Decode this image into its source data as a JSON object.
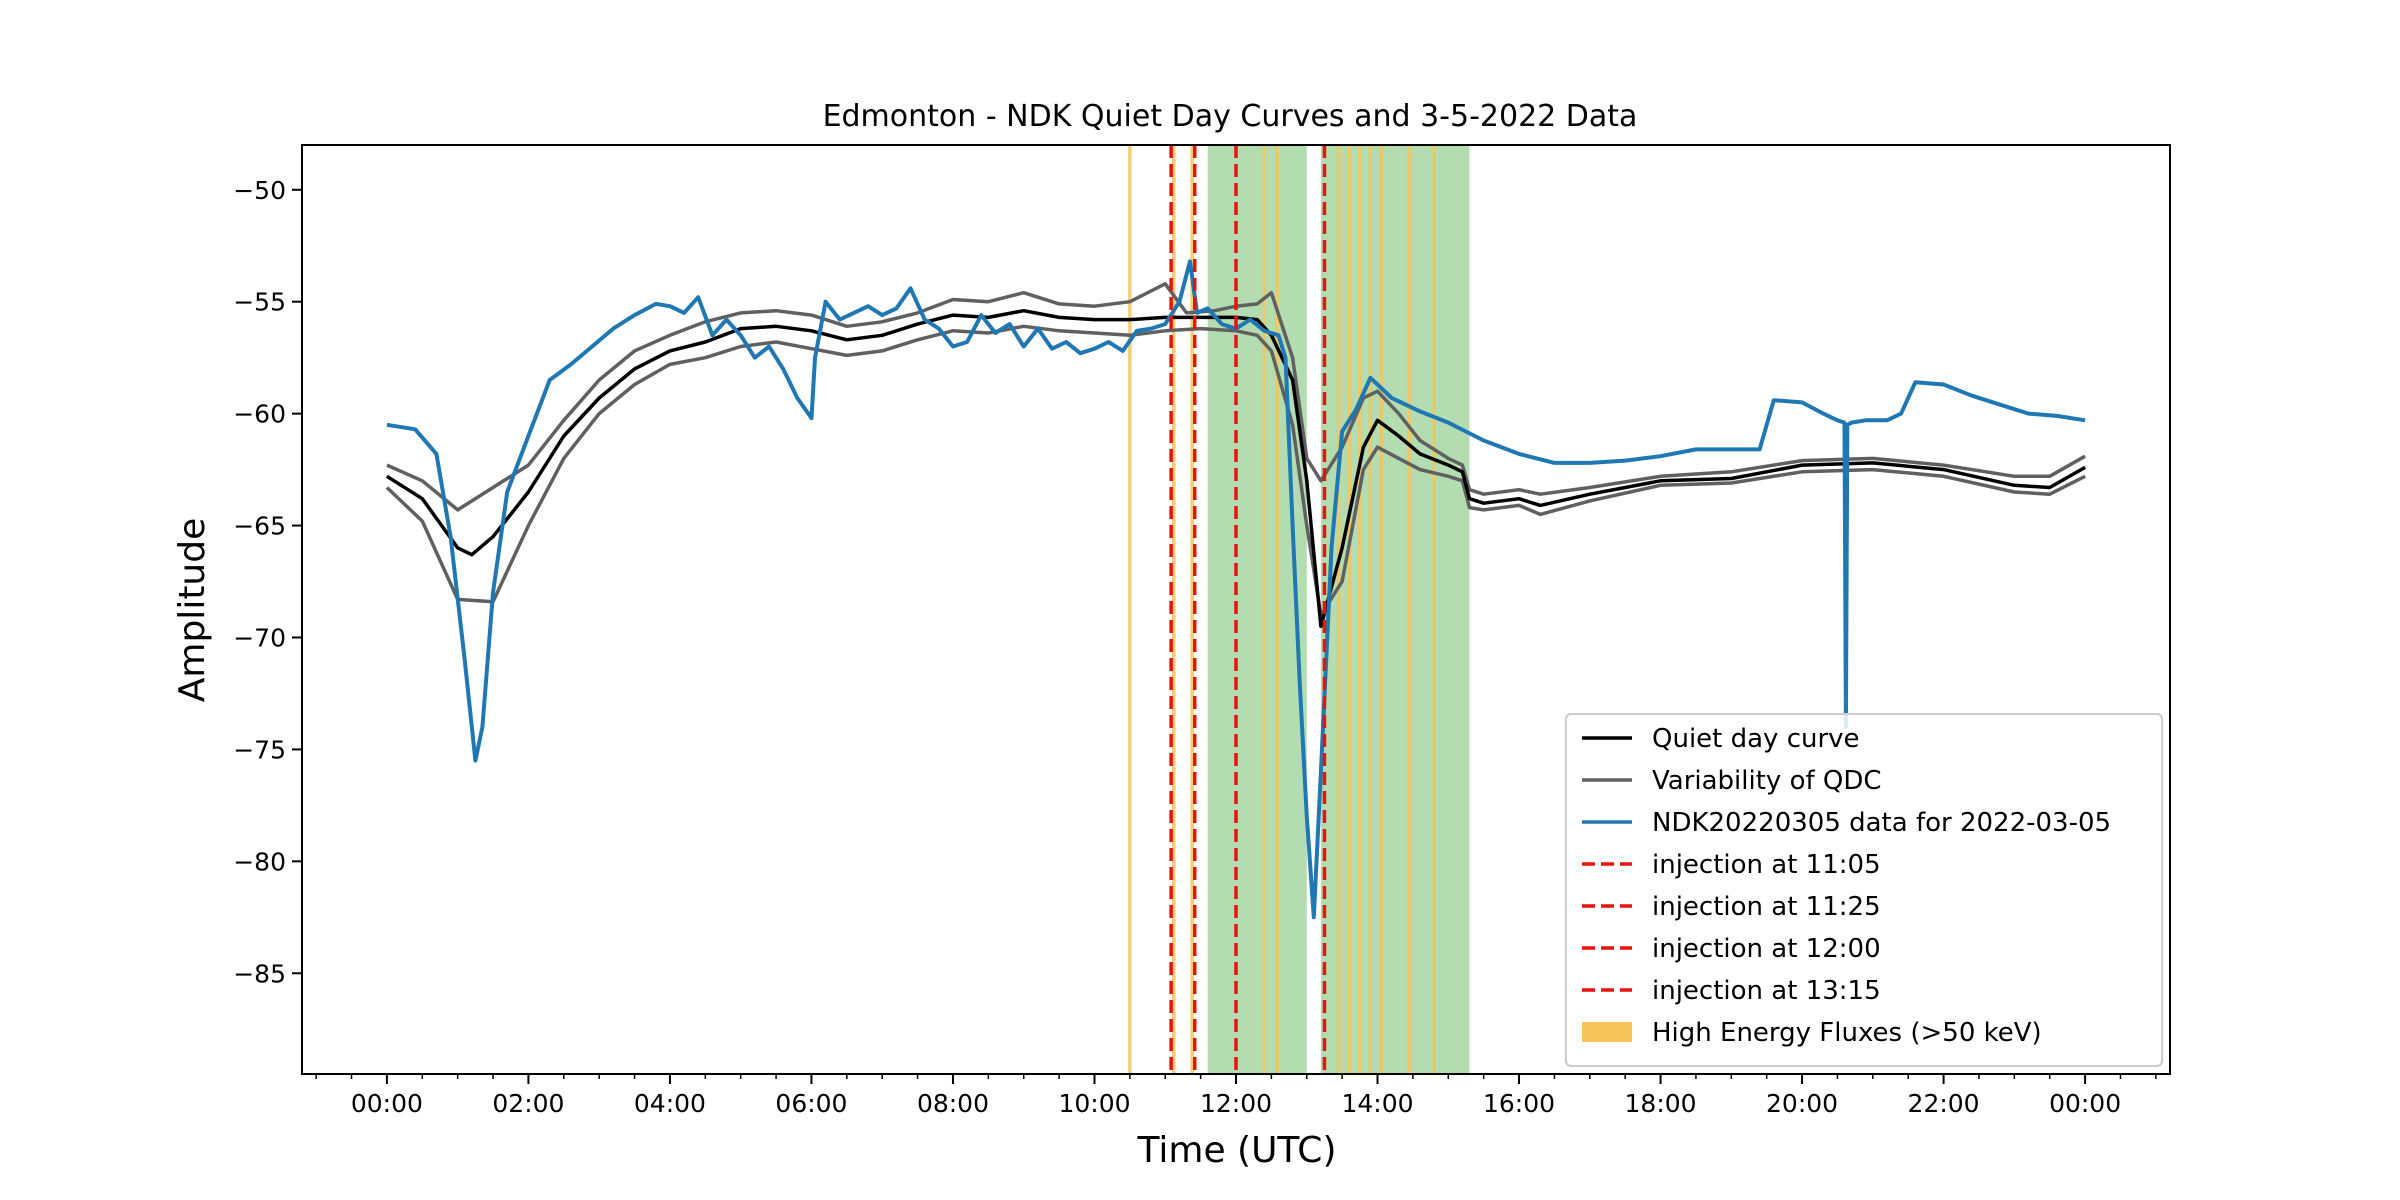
{
  "chart_data": {
    "type": "line",
    "title": "Edmonton - NDK Quiet Day Curves and 3-5-2022 Data",
    "xlabel": "Time (UTC)",
    "ylabel": "Amplitude",
    "x_unit": "hours UTC",
    "xlim": [
      -1.2,
      25.2
    ],
    "ylim": [
      -89.5,
      -48
    ],
    "x_ticks": [
      0,
      2,
      4,
      6,
      8,
      10,
      12,
      14,
      16,
      18,
      20,
      22,
      24
    ],
    "x_tick_labels": [
      "00:00",
      "02:00",
      "04:00",
      "06:00",
      "08:00",
      "10:00",
      "12:00",
      "14:00",
      "16:00",
      "18:00",
      "20:00",
      "22:00",
      "00:00"
    ],
    "y_ticks": [
      -50,
      -55,
      -60,
      -65,
      -70,
      -75,
      -80,
      -85
    ],
    "y_tick_labels": [
      "−50",
      "−55",
      "−60",
      "−65",
      "−70",
      "−75",
      "−80",
      "−85"
    ],
    "grid": false,
    "legend_position": "lower-right",
    "colors": {
      "quiet": "#000000",
      "variability": "#606060",
      "data": "#1f77b4",
      "injection": "#e8140c",
      "high_energy": "#f5c55c",
      "green_band": "#8fcc8a"
    },
    "series": [
      {
        "name": "Quiet day curve",
        "key": "quiet",
        "x": [
          0,
          0.5,
          1.0,
          1.2,
          1.5,
          2.0,
          2.5,
          3.0,
          3.5,
          4.0,
          4.5,
          5.0,
          5.5,
          6.0,
          6.5,
          7.0,
          7.5,
          8.0,
          8.5,
          9.0,
          9.5,
          10.0,
          10.5,
          11.0,
          11.5,
          12.0,
          12.3,
          12.5,
          12.8,
          13.0,
          13.2,
          13.5,
          13.8,
          14.0,
          14.3,
          14.6,
          15.0,
          15.2,
          15.3,
          15.5,
          16.0,
          16.3,
          17.0,
          18.0,
          19.0,
          20.0,
          21.0,
          22.0,
          23.0,
          23.5,
          24.0
        ],
        "y": [
          -62.8,
          -63.8,
          -66.0,
          -66.3,
          -65.5,
          -63.5,
          -61.0,
          -59.3,
          -58.0,
          -57.2,
          -56.8,
          -56.2,
          -56.1,
          -56.3,
          -56.7,
          -56.5,
          -56.0,
          -55.6,
          -55.7,
          -55.4,
          -55.7,
          -55.8,
          -55.8,
          -55.7,
          -55.7,
          -55.7,
          -55.8,
          -56.5,
          -58.5,
          -63.0,
          -69.5,
          -66.0,
          -61.5,
          -60.3,
          -61.0,
          -61.8,
          -62.3,
          -62.6,
          -63.8,
          -64.0,
          -63.8,
          -64.1,
          -63.6,
          -63.0,
          -62.9,
          -62.3,
          -62.2,
          -62.5,
          -63.2,
          -63.3,
          -62.4
        ]
      },
      {
        "name": "Variability of QDC",
        "key": "variability",
        "bands": [
          {
            "label": "upper",
            "x": [
              0,
              0.5,
              1.0,
              1.5,
              2.0,
              2.5,
              3.0,
              3.5,
              4.0,
              4.5,
              5.0,
              5.5,
              6.0,
              6.5,
              7.0,
              7.5,
              8.0,
              8.5,
              9.0,
              9.5,
              10.0,
              10.5,
              11.0,
              11.3,
              11.7,
              12.0,
              12.3,
              12.5,
              12.8,
              13.0,
              13.2,
              13.5,
              13.8,
              14.0,
              14.3,
              14.6,
              15.0,
              15.2,
              15.3,
              15.5,
              16.0,
              16.3,
              17.0,
              18.0,
              19.0,
              20.0,
              21.0,
              22.0,
              23.0,
              23.5,
              24.0
            ],
            "y": [
              -62.3,
              -63.0,
              -64.3,
              -63.3,
              -62.3,
              -60.3,
              -58.5,
              -57.2,
              -56.5,
              -55.9,
              -55.5,
              -55.4,
              -55.6,
              -56.1,
              -55.9,
              -55.5,
              -54.9,
              -55.0,
              -54.6,
              -55.1,
              -55.2,
              -55.0,
              -54.2,
              -55.5,
              -55.4,
              -55.2,
              -55.1,
              -54.6,
              -57.5,
              -62.0,
              -63.0,
              -61.5,
              -59.3,
              -59.0,
              -60.0,
              -61.2,
              -62.0,
              -62.3,
              -63.4,
              -63.6,
              -63.4,
              -63.6,
              -63.3,
              -62.8,
              -62.6,
              -62.1,
              -62.0,
              -62.3,
              -62.8,
              -62.8,
              -61.9
            ]
          },
          {
            "label": "lower",
            "x": [
              0,
              0.5,
              1.0,
              1.5,
              2.0,
              2.5,
              3.0,
              3.5,
              4.0,
              4.5,
              5.0,
              5.5,
              6.0,
              6.5,
              7.0,
              7.5,
              8.0,
              8.5,
              9.0,
              9.5,
              10.0,
              10.5,
              11.0,
              11.5,
              12.0,
              12.3,
              12.5,
              12.8,
              13.0,
              13.2,
              13.5,
              13.8,
              14.0,
              14.3,
              14.6,
              15.0,
              15.2,
              15.3,
              15.5,
              16.0,
              16.3,
              17.0,
              18.0,
              19.0,
              20.0,
              21.0,
              22.0,
              23.0,
              23.5,
              24.0
            ],
            "y": [
              -63.3,
              -64.8,
              -68.3,
              -68.4,
              -65.0,
              -62.0,
              -60.0,
              -58.7,
              -57.8,
              -57.5,
              -57.0,
              -56.8,
              -57.1,
              -57.4,
              -57.2,
              -56.7,
              -56.3,
              -56.4,
              -56.1,
              -56.3,
              -56.4,
              -56.5,
              -56.3,
              -56.2,
              -56.3,
              -56.5,
              -57.2,
              -60.5,
              -65.0,
              -69.0,
              -67.5,
              -62.5,
              -61.5,
              -62.0,
              -62.5,
              -62.8,
              -63.0,
              -64.2,
              -64.3,
              -64.1,
              -64.5,
              -63.9,
              -63.2,
              -63.1,
              -62.6,
              -62.5,
              -62.8,
              -63.5,
              -63.6,
              -62.8
            ]
          }
        ]
      },
      {
        "name": "NDK20220305 data for 2022-03-05",
        "key": "data",
        "x": [
          0,
          0.4,
          0.7,
          0.9,
          1.1,
          1.25,
          1.35,
          1.5,
          1.7,
          2.0,
          2.3,
          2.6,
          2.9,
          3.2,
          3.5,
          3.8,
          4.0,
          4.2,
          4.4,
          4.6,
          4.8,
          5.0,
          5.2,
          5.4,
          5.6,
          5.8,
          6.0,
          6.05,
          6.2,
          6.4,
          6.6,
          6.8,
          7.0,
          7.2,
          7.4,
          7.6,
          7.8,
          8.0,
          8.2,
          8.4,
          8.6,
          8.8,
          9.0,
          9.2,
          9.4,
          9.6,
          9.8,
          10.0,
          10.2,
          10.4,
          10.6,
          10.8,
          11.0,
          11.2,
          11.35,
          11.45,
          11.6,
          11.8,
          12.0,
          12.2,
          12.4,
          12.6,
          12.7,
          12.8,
          12.9,
          13.0,
          13.1,
          13.2,
          13.35,
          13.5,
          13.7,
          13.9,
          14.2,
          14.6,
          15.0,
          15.5,
          16.0,
          16.5,
          17.0,
          17.5,
          18.0,
          18.5,
          19.0,
          19.4,
          19.6,
          20.0,
          20.3,
          20.5,
          20.6,
          20.62,
          20.64,
          20.7,
          20.9,
          21.2,
          21.4,
          21.6,
          22.0,
          22.4,
          22.8,
          23.2,
          23.6,
          24.0
        ],
        "y": [
          -60.5,
          -60.7,
          -61.8,
          -65.5,
          -71.0,
          -75.5,
          -74.0,
          -68.0,
          -63.5,
          -61.0,
          -58.5,
          -57.8,
          -57.0,
          -56.2,
          -55.6,
          -55.1,
          -55.2,
          -55.5,
          -54.8,
          -56.5,
          -55.8,
          -56.5,
          -57.5,
          -57.0,
          -58.0,
          -59.3,
          -60.2,
          -57.5,
          -55.0,
          -55.8,
          -55.5,
          -55.2,
          -55.6,
          -55.3,
          -54.4,
          -55.8,
          -56.2,
          -57.0,
          -56.8,
          -55.6,
          -56.4,
          -56.0,
          -57.0,
          -56.2,
          -57.1,
          -56.8,
          -57.3,
          -57.1,
          -56.8,
          -57.2,
          -56.3,
          -56.2,
          -56.0,
          -55.0,
          -53.2,
          -55.5,
          -55.3,
          -56.0,
          -56.2,
          -55.8,
          -56.3,
          -56.5,
          -57.5,
          -65.0,
          -72.0,
          -78.0,
          -82.5,
          -76.0,
          -66.0,
          -60.8,
          -59.8,
          -58.4,
          -59.3,
          -59.9,
          -60.4,
          -61.2,
          -61.8,
          -62.2,
          -62.2,
          -62.1,
          -61.9,
          -61.6,
          -61.6,
          -61.6,
          -59.4,
          -59.5,
          -60.0,
          -60.3,
          -60.4,
          -74.0,
          -60.5,
          -60.4,
          -60.3,
          -60.3,
          -60.0,
          -58.6,
          -58.7,
          -59.2,
          -59.6,
          -60.0,
          -60.1,
          -60.3
        ]
      }
    ],
    "injections": [
      {
        "label": "injection at 11:05",
        "time": 11.083
      },
      {
        "label": "injection at 11:25",
        "time": 11.417
      },
      {
        "label": "injection at 12:00",
        "time": 12.0
      },
      {
        "label": "injection at 13:15",
        "time": 13.25
      }
    ],
    "high_energy_label": "High Energy Fluxes (>50 keV)",
    "high_energy_times": [
      10.5,
      11.12,
      11.38,
      12.4,
      12.58,
      13.45,
      13.6,
      13.75,
      13.9,
      14.05,
      14.45,
      14.8
    ],
    "green_bands": [
      [
        11.6,
        13.0
      ],
      [
        13.2,
        15.3
      ]
    ],
    "legend_items": [
      {
        "label": "Quiet day curve",
        "key": "quiet",
        "style": "line"
      },
      {
        "label": "Variability of QDC",
        "key": "variability",
        "style": "line"
      },
      {
        "label": "NDK20220305 data for 2022-03-05",
        "key": "data",
        "style": "line"
      },
      {
        "label": "injection at 11:05",
        "key": "injection",
        "style": "dash"
      },
      {
        "label": "injection at 11:25",
        "key": "injection",
        "style": "dash"
      },
      {
        "label": "injection at 12:00",
        "key": "injection",
        "style": "dash"
      },
      {
        "label": "injection at 13:15",
        "key": "injection",
        "style": "dash"
      },
      {
        "label": "High Energy Fluxes (>50 keV)",
        "key": "high_energy",
        "style": "patch"
      }
    ]
  }
}
